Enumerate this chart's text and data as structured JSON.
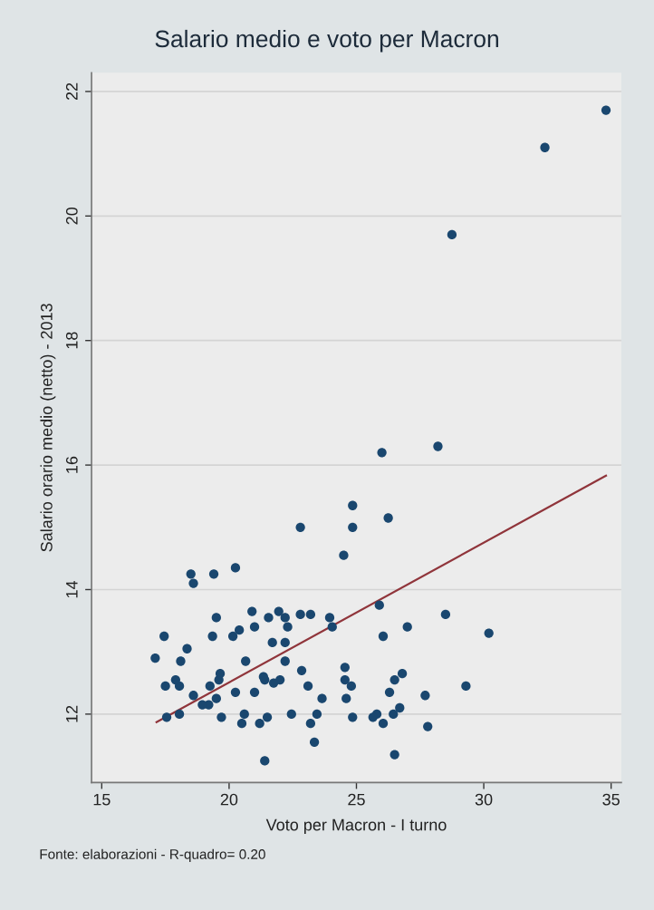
{
  "chart_data": {
    "type": "scatter",
    "title": "Salario medio e voto per Macron",
    "xlabel": "Voto per Macron - I turno",
    "ylabel": "Salario orario medio (netto) - 2013",
    "annotations": [
      "Fonte: elaborazioni - R-quadro= 0.20"
    ],
    "xlim": [
      14.6,
      35.4
    ],
    "ylim": [
      10.9,
      22.3
    ],
    "xticks": [
      15,
      20,
      25,
      30,
      35
    ],
    "yticks": [
      12,
      14,
      16,
      18,
      20,
      22
    ],
    "grid": "y",
    "series": [
      {
        "color": "#1a476f",
        "marker": "circle",
        "x": [
          34.8,
          32.4,
          28.75,
          28.2,
          30.2,
          29.3,
          28.5,
          27.8,
          27.7,
          27.0,
          26.7,
          26.8,
          26.5,
          26.45,
          26.5,
          26.3,
          26.05,
          26.05,
          26.25,
          26.0,
          25.9,
          25.8,
          25.65,
          24.85,
          24.8,
          24.6,
          24.55,
          24.55,
          24.5,
          24.85,
          24.85,
          24.05,
          23.95,
          23.65,
          23.45,
          23.35,
          23.2,
          23.1,
          23.2,
          22.85,
          22.8,
          22.8,
          22.45,
          22.2,
          22.2,
          22.3,
          22.2,
          21.95,
          22.0,
          21.75,
          21.7,
          21.55,
          21.4,
          21.5,
          21.2,
          21.4,
          21.35,
          21.0,
          21.0,
          20.9,
          20.65,
          20.5,
          20.6,
          20.25,
          20.4,
          20.15,
          20.25,
          19.7,
          19.5,
          19.6,
          19.65,
          19.35,
          19.5,
          19.4,
          19.25,
          19.2,
          18.95,
          18.6,
          18.6,
          18.5,
          18.35,
          18.1,
          18.05,
          17.9,
          18.05,
          17.55,
          17.5,
          17.45,
          17.1
        ],
        "values": [
          21.7,
          21.1,
          19.7,
          16.3,
          13.3,
          12.45,
          13.6,
          11.8,
          12.3,
          13.4,
          12.1,
          12.65,
          11.35,
          12.0,
          12.55,
          12.35,
          11.85,
          13.25,
          15.15,
          16.2,
          13.75,
          12.0,
          11.95,
          11.95,
          12.45,
          12.25,
          12.55,
          12.75,
          14.55,
          15.0,
          15.35,
          13.4,
          13.55,
          12.25,
          12.0,
          11.55,
          11.85,
          12.45,
          13.6,
          12.7,
          13.6,
          15.0,
          12.0,
          12.85,
          13.15,
          13.4,
          13.55,
          13.65,
          12.55,
          12.5,
          13.15,
          13.55,
          11.25,
          11.95,
          11.85,
          12.55,
          12.6,
          12.35,
          13.4,
          13.65,
          12.85,
          11.85,
          12.0,
          12.35,
          13.35,
          13.25,
          14.35,
          11.95,
          12.25,
          12.55,
          12.65,
          13.25,
          13.55,
          14.25,
          12.45,
          12.15,
          12.15,
          12.3,
          14.1,
          14.25,
          13.05,
          12.85,
          12.45,
          12.55,
          12.0,
          11.95,
          12.45,
          13.25,
          12.9
        ]
      },
      {
        "type": "line",
        "color": "#90353b",
        "marker": "none",
        "x": [
          17.15,
          34.8
        ],
        "values": [
          11.87,
          15.83
        ]
      }
    ]
  }
}
